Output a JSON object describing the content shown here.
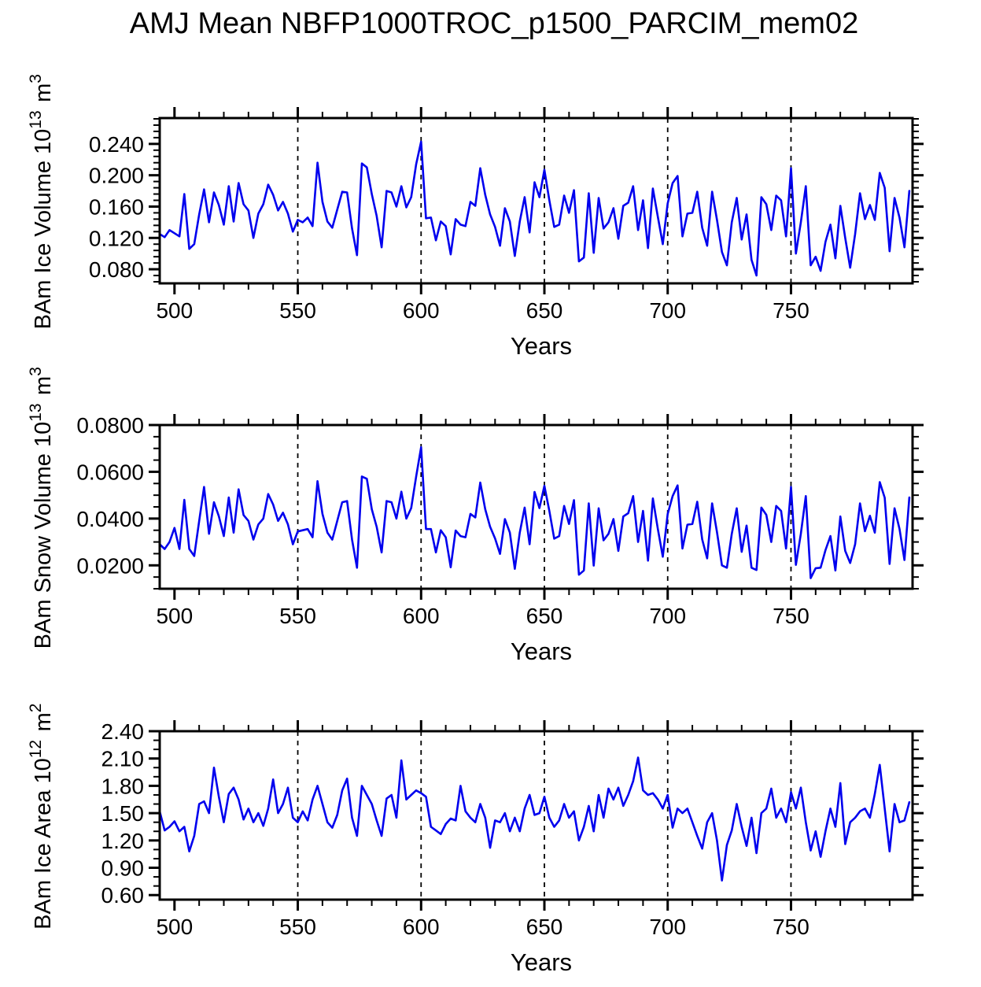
{
  "title": "AMJ Mean NBFP1000TROC_p1500_PARCIM_mem02",
  "xlabel": "Years",
  "line_color": "#0000EE",
  "axis_color": "#000000",
  "grid_color": "#000000",
  "chart_data": {
    "type": "line",
    "xlabel": "Years",
    "xlim": [
      494,
      799.3
    ],
    "xticks": [
      500,
      550,
      600,
      650,
      700,
      750
    ],
    "xtick_labels": [
      "500",
      "550",
      "600",
      "650",
      "700",
      "750"
    ],
    "x_minor_step": 10,
    "grid_years": [
      550,
      600,
      650,
      700,
      750
    ],
    "grid_style": "dashed",
    "legend": "none",
    "x_years": [
      494,
      496,
      498,
      500,
      502,
      504,
      506,
      508,
      510,
      512,
      514,
      516,
      518,
      520,
      522,
      524,
      526,
      528,
      530,
      532,
      534,
      536,
      538,
      540,
      542,
      544,
      546,
      548,
      550,
      552,
      554,
      556,
      558,
      560,
      562,
      564,
      566,
      568,
      570,
      572,
      574,
      576,
      578,
      580,
      582,
      584,
      586,
      588,
      590,
      592,
      594,
      596,
      598,
      600,
      602,
      604,
      606,
      608,
      610,
      612,
      614,
      616,
      618,
      620,
      622,
      624,
      626,
      628,
      630,
      632,
      634,
      636,
      638,
      640,
      642,
      644,
      646,
      648,
      650,
      652,
      654,
      656,
      658,
      660,
      662,
      664,
      666,
      668,
      670,
      672,
      674,
      676,
      678,
      680,
      682,
      684,
      686,
      688,
      690,
      692,
      694,
      696,
      698,
      700,
      702,
      704,
      706,
      708,
      710,
      712,
      714,
      716,
      718,
      720,
      722,
      724,
      726,
      728,
      730,
      732,
      734,
      736,
      738,
      740,
      742,
      744,
      746,
      748,
      750,
      752,
      754,
      756,
      758,
      760,
      762,
      764,
      766,
      768,
      770,
      772,
      774,
      776,
      778,
      780,
      782,
      784,
      786,
      788,
      790,
      792,
      794,
      796,
      798
    ],
    "panels": [
      {
        "id": "ice-volume",
        "ylabel_parts": [
          {
            "t": "BAm Ice Volume 10"
          },
          {
            "sup": "13"
          },
          {
            "t": " m"
          },
          {
            "sup": "3"
          }
        ],
        "ylim": [
          0.062,
          0.273
        ],
        "yticks": [
          0.08,
          0.12,
          0.16,
          0.2,
          0.24
        ],
        "ytick_labels": [
          "0.080",
          "0.120",
          "0.160",
          "0.200",
          "0.240"
        ],
        "y_minor_step": 0.008,
        "values": [
          0.125,
          0.121,
          0.13,
          0.126,
          0.122,
          0.176,
          0.106,
          0.112,
          0.15,
          0.182,
          0.14,
          0.178,
          0.162,
          0.137,
          0.186,
          0.141,
          0.19,
          0.163,
          0.155,
          0.12,
          0.151,
          0.163,
          0.188,
          0.175,
          0.155,
          0.166,
          0.151,
          0.128,
          0.143,
          0.14,
          0.146,
          0.135,
          0.216,
          0.166,
          0.141,
          0.133,
          0.156,
          0.179,
          0.178,
          0.132,
          0.098,
          0.215,
          0.21,
          0.176,
          0.148,
          0.108,
          0.18,
          0.178,
          0.16,
          0.186,
          0.159,
          0.172,
          0.214,
          0.243,
          0.145,
          0.146,
          0.117,
          0.141,
          0.135,
          0.099,
          0.144,
          0.137,
          0.135,
          0.166,
          0.161,
          0.209,
          0.175,
          0.15,
          0.134,
          0.11,
          0.158,
          0.141,
          0.097,
          0.141,
          0.172,
          0.127,
          0.191,
          0.172,
          0.207,
          0.168,
          0.134,
          0.137,
          0.174,
          0.152,
          0.181,
          0.09,
          0.095,
          0.177,
          0.101,
          0.171,
          0.132,
          0.14,
          0.158,
          0.119,
          0.161,
          0.165,
          0.186,
          0.13,
          0.168,
          0.107,
          0.183,
          0.147,
          0.112,
          0.164,
          0.19,
          0.199,
          0.122,
          0.151,
          0.152,
          0.179,
          0.133,
          0.11,
          0.179,
          0.143,
          0.102,
          0.085,
          0.14,
          0.171,
          0.118,
          0.15,
          0.092,
          0.072,
          0.172,
          0.163,
          0.13,
          0.174,
          0.168,
          0.122,
          0.209,
          0.1,
          0.14,
          0.186,
          0.085,
          0.096,
          0.078,
          0.115,
          0.137,
          0.094,
          0.161,
          0.12,
          0.082,
          0.125,
          0.177,
          0.144,
          0.162,
          0.143,
          0.203,
          0.184,
          0.103,
          0.171,
          0.146,
          0.108,
          0.18
        ]
      },
      {
        "id": "snow-volume",
        "ylabel_parts": [
          {
            "t": "BAm Snow Volume 10"
          },
          {
            "sup": "13"
          },
          {
            "t": " m"
          },
          {
            "sup": "3"
          }
        ],
        "ylim": [
          0.01,
          0.08
        ],
        "yticks": [
          0.02,
          0.04,
          0.06,
          0.08
        ],
        "ytick_labels": [
          "0.0200",
          "0.0400",
          "0.0600",
          "0.0800"
        ],
        "y_minor_step": 0.005,
        "values": [
          0.029,
          0.027,
          0.03,
          0.036,
          0.027,
          0.048,
          0.027,
          0.024,
          0.039,
          0.0535,
          0.0335,
          0.047,
          0.041,
          0.0325,
          0.049,
          0.034,
          0.0525,
          0.0415,
          0.039,
          0.031,
          0.0375,
          0.04,
          0.0505,
          0.046,
          0.039,
          0.0425,
          0.0375,
          0.029,
          0.0345,
          0.035,
          0.0355,
          0.032,
          0.056,
          0.042,
          0.034,
          0.031,
          0.039,
          0.047,
          0.0475,
          0.031,
          0.019,
          0.058,
          0.057,
          0.044,
          0.0365,
          0.0255,
          0.0475,
          0.047,
          0.04,
          0.0515,
          0.04,
          0.0445,
          0.058,
          0.0705,
          0.0355,
          0.0355,
          0.0255,
          0.035,
          0.032,
          0.0192,
          0.0349,
          0.0325,
          0.032,
          0.042,
          0.0405,
          0.0554,
          0.044,
          0.0365,
          0.0315,
          0.0249,
          0.0398,
          0.034,
          0.0185,
          0.034,
          0.0447,
          0.029,
          0.0514,
          0.0445,
          0.054,
          0.0433,
          0.0314,
          0.0325,
          0.0454,
          0.0377,
          0.0479,
          0.016,
          0.0178,
          0.0465,
          0.0199,
          0.0444,
          0.0307,
          0.0335,
          0.0398,
          0.0262,
          0.0409,
          0.0423,
          0.0496,
          0.03,
          0.0433,
          0.022,
          0.0486,
          0.0356,
          0.0237,
          0.0419,
          0.0496,
          0.0542,
          0.0272,
          0.0374,
          0.0377,
          0.0472,
          0.0311,
          0.023,
          0.0465,
          0.0342,
          0.02,
          0.019,
          0.0335,
          0.0444,
          0.0258,
          0.037,
          0.019,
          0.018,
          0.0447,
          0.0416,
          0.03,
          0.0454,
          0.0433,
          0.0272,
          0.0535,
          0.0202,
          0.0335,
          0.0496,
          0.0145,
          0.0188,
          0.019,
          0.0265,
          0.0325,
          0.0178,
          0.0409,
          0.0262,
          0.021,
          0.029,
          0.0465,
          0.0346,
          0.0412,
          0.034,
          0.0556,
          0.0489,
          0.0206,
          0.0444,
          0.0356,
          0.0223,
          0.049
        ]
      },
      {
        "id": "ice-area",
        "ylabel_parts": [
          {
            "t": "BAm Ice Area 10"
          },
          {
            "sup": "12"
          },
          {
            "t": " m"
          },
          {
            "sup": "2"
          }
        ],
        "ylim": [
          0.55,
          2.4
        ],
        "yticks": [
          0.6,
          0.9,
          1.2,
          1.5,
          1.8,
          2.1,
          2.4
        ],
        "ytick_labels": [
          "0.60",
          "0.90",
          "1.20",
          "1.50",
          "1.80",
          "2.10",
          "2.40"
        ],
        "y_minor_step": 0.1,
        "values": [
          1.52,
          1.31,
          1.35,
          1.41,
          1.3,
          1.35,
          1.08,
          1.25,
          1.6,
          1.63,
          1.5,
          2.0,
          1.68,
          1.4,
          1.71,
          1.78,
          1.65,
          1.43,
          1.55,
          1.4,
          1.5,
          1.36,
          1.55,
          1.87,
          1.5,
          1.6,
          1.78,
          1.45,
          1.4,
          1.52,
          1.42,
          1.65,
          1.8,
          1.6,
          1.4,
          1.34,
          1.48,
          1.75,
          1.88,
          1.45,
          1.25,
          1.8,
          1.7,
          1.6,
          1.42,
          1.25,
          1.66,
          1.7,
          1.45,
          2.08,
          1.65,
          1.7,
          1.75,
          1.72,
          1.68,
          1.35,
          1.31,
          1.27,
          1.38,
          1.44,
          1.42,
          1.8,
          1.52,
          1.45,
          1.4,
          1.6,
          1.45,
          1.12,
          1.42,
          1.4,
          1.5,
          1.3,
          1.45,
          1.3,
          1.55,
          1.7,
          1.48,
          1.5,
          1.68,
          1.45,
          1.35,
          1.42,
          1.6,
          1.45,
          1.52,
          1.2,
          1.35,
          1.58,
          1.3,
          1.7,
          1.45,
          1.77,
          1.65,
          1.78,
          1.58,
          1.7,
          1.85,
          2.11,
          1.75,
          1.7,
          1.72,
          1.65,
          1.55,
          1.7,
          1.34,
          1.55,
          1.5,
          1.55,
          1.4,
          1.25,
          1.11,
          1.4,
          1.5,
          1.2,
          0.76,
          1.15,
          1.31,
          1.6,
          1.35,
          1.14,
          1.45,
          1.06,
          1.5,
          1.55,
          1.77,
          1.45,
          1.55,
          1.4,
          1.73,
          1.55,
          1.78,
          1.4,
          1.09,
          1.3,
          1.02,
          1.3,
          1.55,
          1.35,
          1.83,
          1.16,
          1.4,
          1.45,
          1.52,
          1.55,
          1.45,
          1.71,
          2.03,
          1.55,
          1.08,
          1.6,
          1.4,
          1.42,
          1.62
        ]
      }
    ]
  }
}
